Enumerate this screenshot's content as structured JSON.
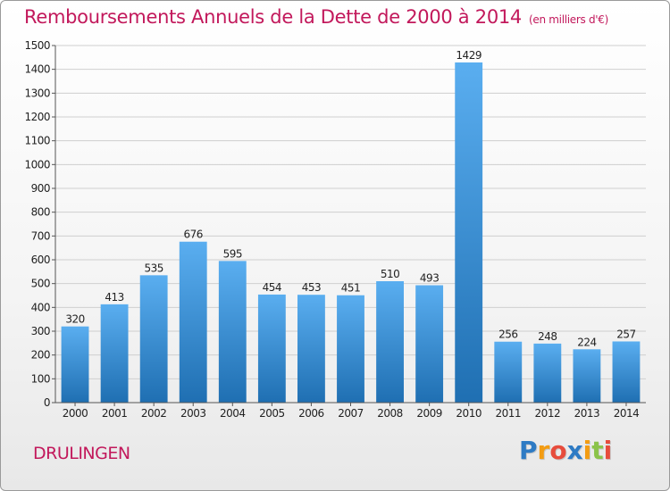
{
  "title": "Remboursements Annuels de la Dette de 2000 à 2014",
  "unit": "(en milliers d'€)",
  "commune": "DRULINGEN",
  "logo": {
    "text": "Proxiti",
    "letter_colors": [
      "#2e7bc4",
      "#f39c12",
      "#e74c3c",
      "#2e7bc4",
      "#f39c12",
      "#8bc34a",
      "#e74c3c"
    ]
  },
  "colors": {
    "title": "#c2185b",
    "bar_top": "#5aaef0",
    "bar_bottom": "#1f6fb2",
    "grid": "#cfcfcf",
    "axis": "#555555",
    "text": "#222222"
  },
  "chart_data": {
    "type": "bar",
    "title": "Remboursements Annuels de la Dette de 2000 à 2014",
    "xlabel": "",
    "ylabel": "",
    "unit": "en milliers d'€",
    "categories": [
      "2000",
      "2001",
      "2002",
      "2003",
      "2004",
      "2005",
      "2006",
      "2007",
      "2008",
      "2009",
      "2010",
      "2011",
      "2012",
      "2013",
      "2014"
    ],
    "values": [
      320,
      413,
      535,
      676,
      595,
      454,
      453,
      451,
      510,
      493,
      1429,
      256,
      248,
      224,
      257
    ],
    "ylim": [
      0,
      1500
    ],
    "yticks": [
      0,
      100,
      200,
      300,
      400,
      500,
      600,
      700,
      800,
      900,
      1000,
      1100,
      1200,
      1300,
      1400,
      1500
    ],
    "grid": true
  }
}
